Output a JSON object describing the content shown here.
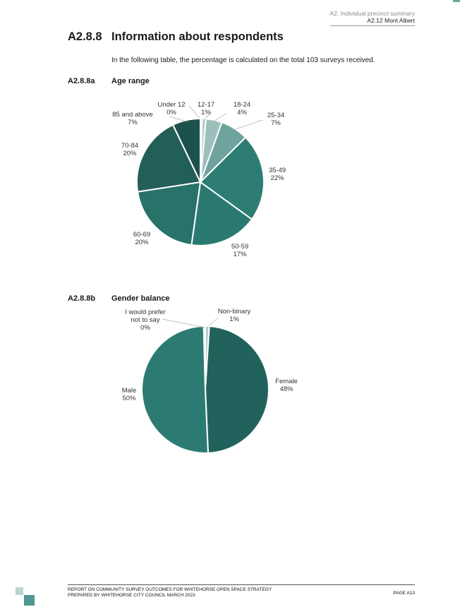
{
  "header": {
    "section": "A2. Individual precinct summary",
    "subsection": "A2.12 Mont Albert"
  },
  "title": {
    "number": "A2.8.8",
    "text": "Information about respondents"
  },
  "intro": "In the following table, the percentage is calculated on the total 103 surveys received.",
  "age_section": {
    "number": "A2.8.8a",
    "title": "Age range"
  },
  "gender_section": {
    "number": "A2.8.8b",
    "title": "Gender balance"
  },
  "chart_data": [
    {
      "type": "pie",
      "title": "Age range",
      "categories": [
        "Under 12",
        "12-17",
        "18-24",
        "25-34",
        "35-49",
        "50-59",
        "60-69",
        "70-84",
        "85 and above"
      ],
      "values": [
        0.4,
        1,
        4,
        7,
        22,
        17,
        20,
        20,
        7
      ],
      "labels": [
        "0%",
        "1%",
        "4%",
        "7%",
        "22%",
        "17%",
        "20%",
        "20%",
        "7%"
      ],
      "colors": [
        "#c5d8d6",
        "#b4cecb",
        "#9dbfbb",
        "#6fa39d",
        "#2d7d74",
        "#2a7a72",
        "#287269",
        "#235f59",
        "#1c524c"
      ]
    },
    {
      "type": "pie",
      "title": "Gender balance",
      "categories": [
        "Non-binary",
        "Female",
        "Male",
        "I would prefer not to say"
      ],
      "values": [
        1,
        48,
        50,
        0.4
      ],
      "labels": [
        "1%",
        "48%",
        "50%",
        "0%"
      ],
      "colors": [
        "#b4cecb",
        "#21635c",
        "#2c7b72",
        "#c5d8d6"
      ]
    }
  ],
  "footer": {
    "line1": "REPORT ON COMMUNITY SURVEY OUTCOMES FOR WHITEHORSE OPEN SPACE STRATEGY",
    "line2": "PREPARED BY WHITEHORSE CITY COUNCIL MARCH 2023",
    "page": "PAGE A13"
  }
}
